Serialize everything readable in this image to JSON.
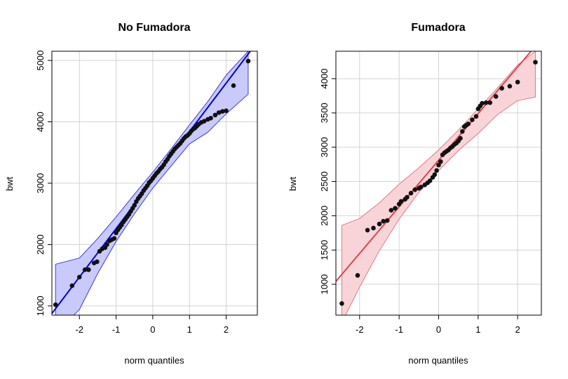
{
  "chart_data": [
    {
      "type": "scatter",
      "title": "No Fumadora",
      "xlabel": "norm quantiles",
      "ylabel": "bwt",
      "xlim": [
        -2.75,
        2.85
      ],
      "ylim": [
        850,
        5150
      ],
      "x_ticks": [
        -2,
        -1,
        0,
        1,
        2
      ],
      "y_ticks": [
        1000,
        2000,
        3000,
        4000,
        5000
      ],
      "grid": true,
      "colors": {
        "line": "#0000cd",
        "band_fill": "#c9c9fb",
        "band_stroke": "#3c3cd8",
        "points": "#111111"
      },
      "reference_line": {
        "intercept": 3050,
        "slope": 790
      },
      "band_upper": [
        [
          -2.65,
          1680
        ],
        [
          -2.0,
          1780
        ],
        [
          -1.5,
          2100
        ],
        [
          -1.0,
          2450
        ],
        [
          -0.5,
          2820
        ],
        [
          0.0,
          3180
        ],
        [
          0.5,
          3560
        ],
        [
          1.0,
          3950
        ],
        [
          1.5,
          4330
        ],
        [
          2.0,
          4760
        ],
        [
          2.6,
          5150
        ]
      ],
      "band_lower": [
        [
          -2.65,
          560
        ],
        [
          -2.0,
          940
        ],
        [
          -1.5,
          1530
        ],
        [
          -1.0,
          2050
        ],
        [
          -0.5,
          2500
        ],
        [
          0.0,
          2920
        ],
        [
          0.5,
          3280
        ],
        [
          1.0,
          3640
        ],
        [
          1.5,
          3830
        ],
        [
          2.0,
          4130
        ],
        [
          2.6,
          4450
        ]
      ],
      "points": [
        [
          -2.65,
          1020
        ],
        [
          -2.2,
          1330
        ],
        [
          -2.0,
          1470
        ],
        [
          -1.85,
          1590
        ],
        [
          -1.75,
          1590
        ],
        [
          -1.6,
          1700
        ],
        [
          -1.52,
          1720
        ],
        [
          -1.45,
          1890
        ],
        [
          -1.38,
          1930
        ],
        [
          -1.3,
          1950
        ],
        [
          -1.25,
          2000
        ],
        [
          -1.18,
          2060
        ],
        [
          -1.12,
          2080
        ],
        [
          -1.05,
          2100
        ],
        [
          -1.0,
          2190
        ],
        [
          -0.95,
          2240
        ],
        [
          -0.9,
          2280
        ],
        [
          -0.85,
          2320
        ],
        [
          -0.8,
          2370
        ],
        [
          -0.75,
          2410
        ],
        [
          -0.7,
          2450
        ],
        [
          -0.65,
          2490
        ],
        [
          -0.6,
          2540
        ],
        [
          -0.55,
          2590
        ],
        [
          -0.5,
          2640
        ],
        [
          -0.45,
          2700
        ],
        [
          -0.4,
          2750
        ],
        [
          -0.35,
          2790
        ],
        [
          -0.3,
          2830
        ],
        [
          -0.25,
          2880
        ],
        [
          -0.2,
          2920
        ],
        [
          -0.15,
          2960
        ],
        [
          -0.1,
          3010
        ],
        [
          -0.05,
          3040
        ],
        [
          0.0,
          3080
        ],
        [
          0.05,
          3120
        ],
        [
          0.1,
          3160
        ],
        [
          0.15,
          3190
        ],
        [
          0.2,
          3230
        ],
        [
          0.25,
          3260
        ],
        [
          0.3,
          3300
        ],
        [
          0.35,
          3350
        ],
        [
          0.4,
          3390
        ],
        [
          0.45,
          3440
        ],
        [
          0.5,
          3480
        ],
        [
          0.55,
          3520
        ],
        [
          0.6,
          3560
        ],
        [
          0.65,
          3590
        ],
        [
          0.7,
          3620
        ],
        [
          0.75,
          3650
        ],
        [
          0.8,
          3690
        ],
        [
          0.85,
          3730
        ],
        [
          0.9,
          3760
        ],
        [
          0.95,
          3780
        ],
        [
          1.0,
          3810
        ],
        [
          1.05,
          3850
        ],
        [
          1.1,
          3880
        ],
        [
          1.15,
          3900
        ],
        [
          1.2,
          3930
        ],
        [
          1.25,
          3960
        ],
        [
          1.32,
          3990
        ],
        [
          1.4,
          4010
        ],
        [
          1.5,
          4040
        ],
        [
          1.58,
          4060
        ],
        [
          1.7,
          4110
        ],
        [
          1.8,
          4150
        ],
        [
          1.9,
          4170
        ],
        [
          2.0,
          4180
        ],
        [
          2.2,
          4590
        ],
        [
          2.6,
          4990
        ]
      ]
    },
    {
      "type": "scatter",
      "title": "Fumadora",
      "xlabel": "norm quantiles",
      "ylabel": "bwt",
      "xlim": [
        -2.6,
        2.6
      ],
      "ylim": [
        550,
        4400
      ],
      "x_ticks": [
        -2,
        -1,
        0,
        1,
        2
      ],
      "y_ticks": [
        1000,
        1500,
        2000,
        2500,
        3000,
        3500,
        4000
      ],
      "grid": true,
      "colors": {
        "line": "#d9464f",
        "band_fill": "#f8d4d8",
        "band_stroke": "#e07a85",
        "points": "#111111"
      },
      "reference_line": {
        "intercept": 2810,
        "slope": 680
      },
      "band_upper": [
        [
          -2.45,
          1860
        ],
        [
          -2.0,
          1960
        ],
        [
          -1.5,
          2190
        ],
        [
          -1.0,
          2460
        ],
        [
          -0.5,
          2700
        ],
        [
          0.0,
          2960
        ],
        [
          0.5,
          3250
        ],
        [
          1.0,
          3560
        ],
        [
          1.5,
          3870
        ],
        [
          2.0,
          4200
        ],
        [
          2.45,
          4400
        ]
      ],
      "band_lower": [
        [
          -2.45,
          440
        ],
        [
          -2.0,
          960
        ],
        [
          -1.5,
          1490
        ],
        [
          -1.0,
          1950
        ],
        [
          -0.5,
          2340
        ],
        [
          0.0,
          2660
        ],
        [
          0.5,
          2950
        ],
        [
          1.0,
          3200
        ],
        [
          1.5,
          3480
        ],
        [
          2.0,
          3680
        ],
        [
          2.45,
          3730
        ]
      ],
      "points": [
        [
          -2.45,
          720
        ],
        [
          -2.05,
          1130
        ],
        [
          -1.8,
          1790
        ],
        [
          -1.65,
          1820
        ],
        [
          -1.5,
          1880
        ],
        [
          -1.4,
          1920
        ],
        [
          -1.3,
          1930
        ],
        [
          -1.2,
          2080
        ],
        [
          -1.1,
          2110
        ],
        [
          -1.0,
          2170
        ],
        [
          -0.95,
          2210
        ],
        [
          -0.85,
          2240
        ],
        [
          -0.8,
          2270
        ],
        [
          -0.7,
          2330
        ],
        [
          -0.6,
          2380
        ],
        [
          -0.5,
          2400
        ],
        [
          -0.45,
          2420
        ],
        [
          -0.35,
          2450
        ],
        [
          -0.28,
          2480
        ],
        [
          -0.22,
          2510
        ],
        [
          -0.15,
          2560
        ],
        [
          -0.1,
          2600
        ],
        [
          -0.05,
          2660
        ],
        [
          0.0,
          2740
        ],
        [
          0.05,
          2790
        ],
        [
          0.1,
          2890
        ],
        [
          0.15,
          2920
        ],
        [
          0.2,
          2940
        ],
        [
          0.25,
          2960
        ],
        [
          0.3,
          2990
        ],
        [
          0.35,
          3010
        ],
        [
          0.4,
          3040
        ],
        [
          0.45,
          3060
        ],
        [
          0.5,
          3090
        ],
        [
          0.55,
          3130
        ],
        [
          0.6,
          3230
        ],
        [
          0.65,
          3300
        ],
        [
          0.7,
          3320
        ],
        [
          0.75,
          3340
        ],
        [
          0.85,
          3400
        ],
        [
          0.95,
          3450
        ],
        [
          1.0,
          3560
        ],
        [
          1.05,
          3600
        ],
        [
          1.1,
          3640
        ],
        [
          1.2,
          3650
        ],
        [
          1.3,
          3650
        ],
        [
          1.45,
          3740
        ],
        [
          1.6,
          3860
        ],
        [
          1.8,
          3890
        ],
        [
          2.0,
          3950
        ],
        [
          2.45,
          4240
        ]
      ]
    }
  ]
}
